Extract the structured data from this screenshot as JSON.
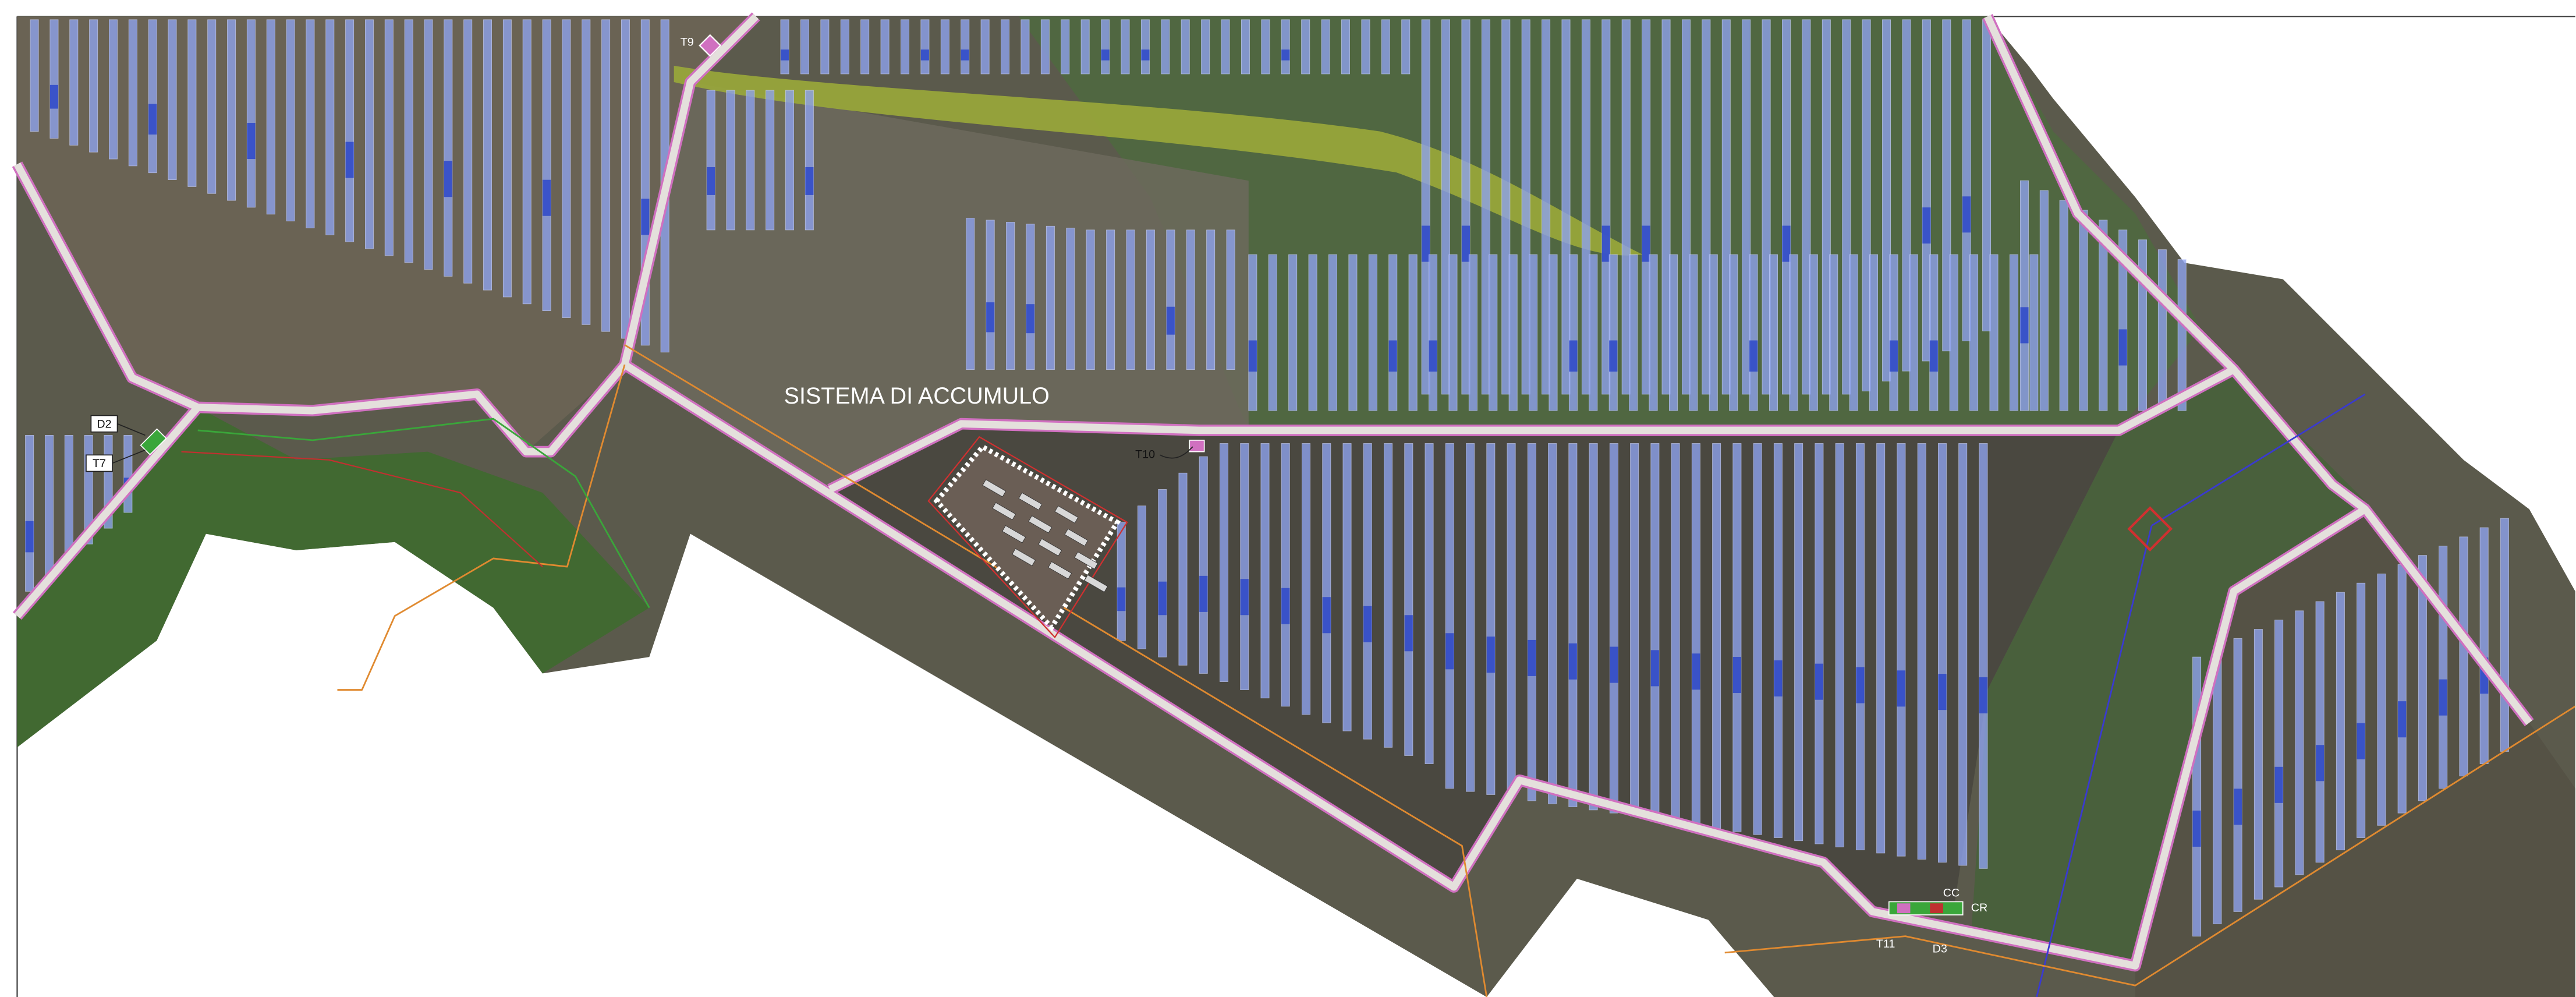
{
  "labels": [
    "T9",
    "SISTEMA DI ACCUMULO",
    "T10",
    "D2",
    "T7",
    "CC",
    "CR",
    "T11",
    "D3"
  ]
}
